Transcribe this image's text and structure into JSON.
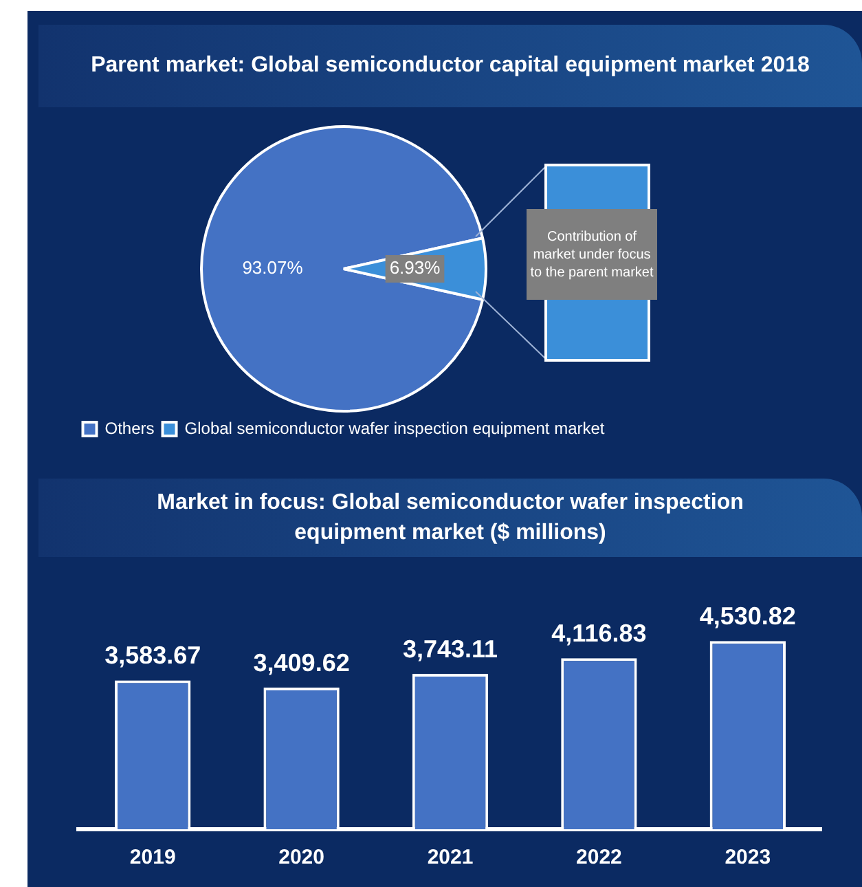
{
  "chart_data": [
    {
      "type": "pie",
      "title": "Parent market: Global semiconductor capital equipment market 2018",
      "categories": [
        "Others",
        "Global semiconductor wafer inspection equipment market"
      ],
      "values": [
        93.07,
        6.93
      ],
      "colors": [
        "#4472c4",
        "#3b8fd9"
      ],
      "value_labels": [
        "93.07%",
        "6.93%"
      ],
      "legend": "bottom",
      "annotations": [
        "Contribution of market under focus to the parent market"
      ]
    },
    {
      "type": "bar",
      "title": "Market in focus: Global semiconductor wafer inspection equipment market ($ millions)",
      "categories": [
        "2019",
        "2020",
        "2021",
        "2022",
        "2023"
      ],
      "values": [
        3583.67,
        3409.62,
        3743.11,
        4116.83,
        4530.82
      ],
      "color": "#4472c4",
      "value_labels": [
        "3,583.67",
        "3,409.62",
        "3,743.11",
        "4,116.83",
        "4,530.82"
      ]
    }
  ]
}
